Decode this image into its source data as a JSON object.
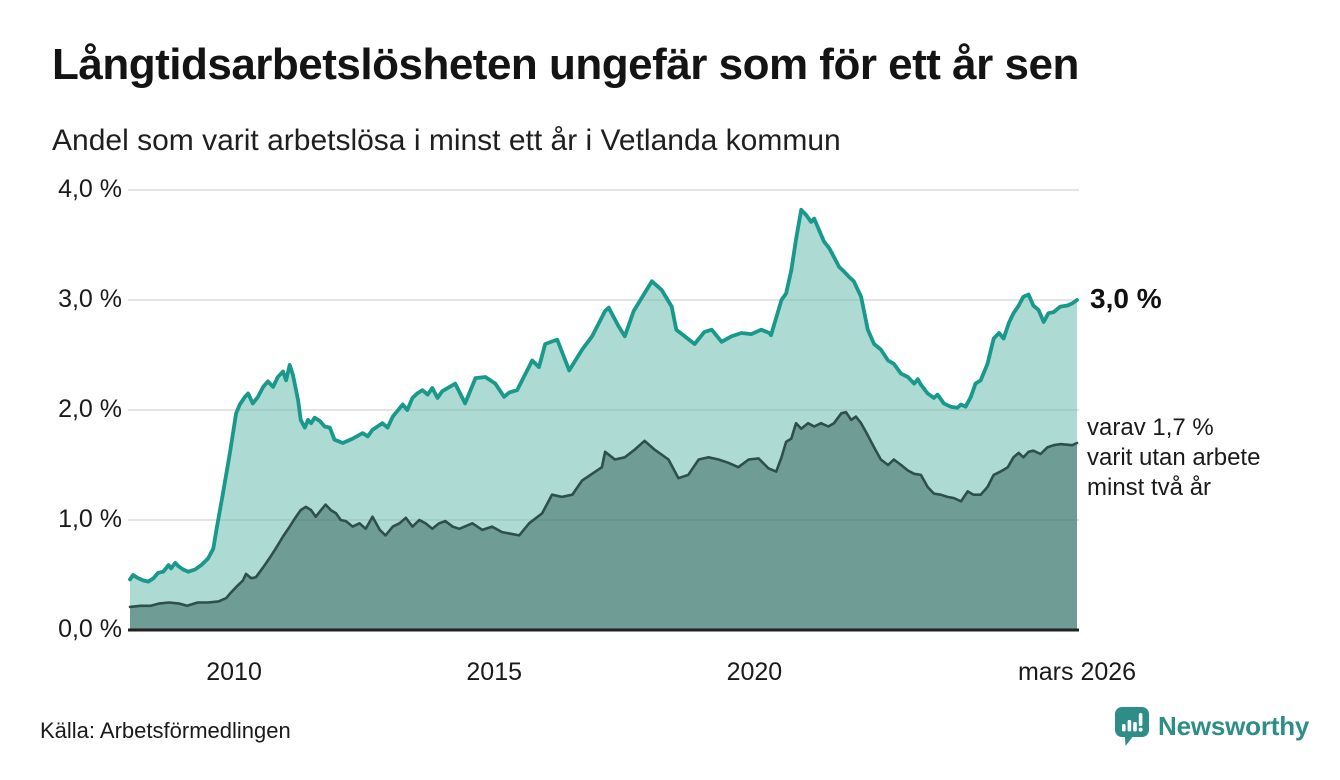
{
  "header": {
    "title": "Långtidsarbetslösheten ungefär som för ett år sen",
    "subtitle": "Andel som varit arbetslösa i minst ett år i Vetlanda kommun"
  },
  "footer": {
    "source": "Källa: Arbetsförmedlingen",
    "brand": "Newsworthy"
  },
  "chart_data": {
    "type": "area",
    "title": "Långtidsarbetslösheten ungefär som för ett år sen",
    "subtitle": "Andel som varit arbetslösa i minst ett år i Vetlanda kommun",
    "x_range": [
      2008.0,
      2026.2
    ],
    "y_range": [
      0,
      4.0
    ],
    "grid": "horizontal",
    "legend_position": "none",
    "y_ticks": [
      {
        "value": 4.0,
        "label": "4,0 %"
      },
      {
        "value": 3.0,
        "label": "3,0 %"
      },
      {
        "value": 2.0,
        "label": "2,0 %"
      },
      {
        "value": 1.0,
        "label": "1,0 %"
      },
      {
        "value": 0.0,
        "label": "0,0 %"
      }
    ],
    "x_ticks": [
      {
        "value": 2010,
        "label": "2010"
      },
      {
        "value": 2015,
        "label": "2015"
      },
      {
        "value": 2020,
        "label": "2020"
      },
      {
        "value": 2026.2,
        "label": "mars 2026"
      }
    ],
    "annotations": {
      "total_label": "3,0 %",
      "sub": [
        "varav 1,7 %",
        "varit utan arbete",
        "minst två år"
      ]
    },
    "colors": {
      "line_total": "#18998b",
      "fill_total": "#addad2",
      "line_two_years": "#2e4f4a",
      "fill_two_years": "#6f9d96",
      "grid": "#dcdcdc",
      "axis": "#222222",
      "brand": "#2e8e87"
    },
    "series": [
      {
        "name": "Andel arbetslösa minst ett år",
        "end_value": "3,0 %",
        "points": [
          [
            2008.0,
            0.46
          ],
          [
            2008.06,
            0.5
          ],
          [
            2008.16,
            0.47
          ],
          [
            2008.26,
            0.45
          ],
          [
            2008.35,
            0.44
          ],
          [
            2008.45,
            0.47
          ],
          [
            2008.54,
            0.52
          ],
          [
            2008.64,
            0.53
          ],
          [
            2008.74,
            0.59
          ],
          [
            2008.79,
            0.56
          ],
          [
            2008.87,
            0.61
          ],
          [
            2008.93,
            0.58
          ],
          [
            2009.02,
            0.55
          ],
          [
            2009.12,
            0.53
          ],
          [
            2009.25,
            0.55
          ],
          [
            2009.37,
            0.59
          ],
          [
            2009.5,
            0.65
          ],
          [
            2009.6,
            0.74
          ],
          [
            2009.66,
            0.91
          ],
          [
            2009.79,
            1.25
          ],
          [
            2009.92,
            1.61
          ],
          [
            2010.04,
            1.97
          ],
          [
            2010.11,
            2.05
          ],
          [
            2010.21,
            2.12
          ],
          [
            2010.27,
            2.15
          ],
          [
            2010.36,
            2.06
          ],
          [
            2010.46,
            2.12
          ],
          [
            2010.56,
            2.21
          ],
          [
            2010.65,
            2.26
          ],
          [
            2010.75,
            2.21
          ],
          [
            2010.84,
            2.3
          ],
          [
            2010.94,
            2.35
          ],
          [
            2011.0,
            2.27
          ],
          [
            2011.07,
            2.41
          ],
          [
            2011.13,
            2.32
          ],
          [
            2011.23,
            2.09
          ],
          [
            2011.28,
            1.91
          ],
          [
            2011.36,
            1.84
          ],
          [
            2011.42,
            1.91
          ],
          [
            2011.48,
            1.88
          ],
          [
            2011.55,
            1.93
          ],
          [
            2011.65,
            1.9
          ],
          [
            2011.74,
            1.85
          ],
          [
            2011.84,
            1.84
          ],
          [
            2011.93,
            1.73
          ],
          [
            2012.09,
            1.7
          ],
          [
            2012.28,
            1.74
          ],
          [
            2012.47,
            1.79
          ],
          [
            2012.57,
            1.76
          ],
          [
            2012.66,
            1.82
          ],
          [
            2012.85,
            1.88
          ],
          [
            2012.95,
            1.84
          ],
          [
            2013.05,
            1.94
          ],
          [
            2013.24,
            2.05
          ],
          [
            2013.33,
            2.0
          ],
          [
            2013.43,
            2.11
          ],
          [
            2013.52,
            2.15
          ],
          [
            2013.62,
            2.18
          ],
          [
            2013.72,
            2.14
          ],
          [
            2013.81,
            2.2
          ],
          [
            2013.91,
            2.11
          ],
          [
            2014.0,
            2.17
          ],
          [
            2014.25,
            2.24
          ],
          [
            2014.44,
            2.06
          ],
          [
            2014.64,
            2.29
          ],
          [
            2014.83,
            2.3
          ],
          [
            2015.02,
            2.24
          ],
          [
            2015.19,
            2.12
          ],
          [
            2015.29,
            2.16
          ],
          [
            2015.44,
            2.18
          ],
          [
            2015.73,
            2.45
          ],
          [
            2015.86,
            2.39
          ],
          [
            2015.98,
            2.6
          ],
          [
            2016.21,
            2.64
          ],
          [
            2016.44,
            2.36
          ],
          [
            2016.69,
            2.55
          ],
          [
            2016.88,
            2.67
          ],
          [
            2017.13,
            2.9
          ],
          [
            2017.2,
            2.93
          ],
          [
            2017.39,
            2.76
          ],
          [
            2017.51,
            2.67
          ],
          [
            2017.68,
            2.9
          ],
          [
            2018.03,
            3.17
          ],
          [
            2018.22,
            3.09
          ],
          [
            2018.41,
            2.94
          ],
          [
            2018.5,
            2.73
          ],
          [
            2018.66,
            2.67
          ],
          [
            2018.85,
            2.6
          ],
          [
            2019.04,
            2.71
          ],
          [
            2019.18,
            2.73
          ],
          [
            2019.37,
            2.62
          ],
          [
            2019.56,
            2.67
          ],
          [
            2019.75,
            2.7
          ],
          [
            2019.94,
            2.69
          ],
          [
            2020.13,
            2.73
          ],
          [
            2020.29,
            2.7
          ],
          [
            2020.32,
            2.68
          ],
          [
            2020.52,
            3.0
          ],
          [
            2020.61,
            3.06
          ],
          [
            2020.71,
            3.27
          ],
          [
            2020.8,
            3.55
          ],
          [
            2020.9,
            3.82
          ],
          [
            2021.0,
            3.77
          ],
          [
            2021.09,
            3.71
          ],
          [
            2021.15,
            3.74
          ],
          [
            2021.24,
            3.64
          ],
          [
            2021.34,
            3.53
          ],
          [
            2021.44,
            3.47
          ],
          [
            2021.53,
            3.39
          ],
          [
            2021.63,
            3.3
          ],
          [
            2021.72,
            3.26
          ],
          [
            2021.82,
            3.21
          ],
          [
            2021.91,
            3.17
          ],
          [
            2022.05,
            3.03
          ],
          [
            2022.18,
            2.73
          ],
          [
            2022.3,
            2.6
          ],
          [
            2022.43,
            2.55
          ],
          [
            2022.57,
            2.45
          ],
          [
            2022.68,
            2.42
          ],
          [
            2022.82,
            2.33
          ],
          [
            2022.95,
            2.3
          ],
          [
            2023.07,
            2.24
          ],
          [
            2023.14,
            2.28
          ],
          [
            2023.2,
            2.23
          ],
          [
            2023.33,
            2.15
          ],
          [
            2023.45,
            2.11
          ],
          [
            2023.52,
            2.14
          ],
          [
            2023.64,
            2.06
          ],
          [
            2023.77,
            2.03
          ],
          [
            2023.9,
            2.02
          ],
          [
            2023.97,
            2.05
          ],
          [
            2024.06,
            2.03
          ],
          [
            2024.16,
            2.12
          ],
          [
            2024.25,
            2.24
          ],
          [
            2024.35,
            2.27
          ],
          [
            2024.48,
            2.42
          ],
          [
            2024.6,
            2.65
          ],
          [
            2024.7,
            2.7
          ],
          [
            2024.79,
            2.65
          ],
          [
            2024.89,
            2.79
          ],
          [
            2024.98,
            2.88
          ],
          [
            2025.08,
            2.95
          ],
          [
            2025.17,
            3.03
          ],
          [
            2025.27,
            3.05
          ],
          [
            2025.36,
            2.95
          ],
          [
            2025.46,
            2.91
          ],
          [
            2025.56,
            2.8
          ],
          [
            2025.65,
            2.88
          ],
          [
            2025.75,
            2.89
          ],
          [
            2025.88,
            2.94
          ],
          [
            2026.02,
            2.95
          ],
          [
            2026.11,
            2.97
          ],
          [
            2026.2,
            3.0
          ]
        ]
      },
      {
        "name": "varav utan arbete minst två år",
        "end_value": "1,7 %",
        "points": [
          [
            2008.0,
            0.21
          ],
          [
            2008.2,
            0.22
          ],
          [
            2008.4,
            0.22
          ],
          [
            2008.55,
            0.24
          ],
          [
            2008.75,
            0.25
          ],
          [
            2008.95,
            0.24
          ],
          [
            2009.1,
            0.22
          ],
          [
            2009.3,
            0.25
          ],
          [
            2009.5,
            0.25
          ],
          [
            2009.7,
            0.26
          ],
          [
            2009.85,
            0.29
          ],
          [
            2009.92,
            0.33
          ],
          [
            2010.04,
            0.39
          ],
          [
            2010.17,
            0.45
          ],
          [
            2010.23,
            0.51
          ],
          [
            2010.33,
            0.47
          ],
          [
            2010.42,
            0.48
          ],
          [
            2010.56,
            0.57
          ],
          [
            2010.69,
            0.66
          ],
          [
            2010.8,
            0.74
          ],
          [
            2010.94,
            0.85
          ],
          [
            2011.07,
            0.94
          ],
          [
            2011.19,
            1.03
          ],
          [
            2011.28,
            1.09
          ],
          [
            2011.38,
            1.12
          ],
          [
            2011.48,
            1.09
          ],
          [
            2011.57,
            1.03
          ],
          [
            2011.67,
            1.09
          ],
          [
            2011.76,
            1.14
          ],
          [
            2011.86,
            1.09
          ],
          [
            2011.96,
            1.06
          ],
          [
            2012.05,
            1.0
          ],
          [
            2012.15,
            0.99
          ],
          [
            2012.28,
            0.94
          ],
          [
            2012.41,
            0.97
          ],
          [
            2012.53,
            0.92
          ],
          [
            2012.66,
            1.03
          ],
          [
            2012.8,
            0.91
          ],
          [
            2012.91,
            0.86
          ],
          [
            2013.05,
            0.94
          ],
          [
            2013.18,
            0.97
          ],
          [
            2013.3,
            1.02
          ],
          [
            2013.43,
            0.94
          ],
          [
            2013.56,
            1.0
          ],
          [
            2013.68,
            0.97
          ],
          [
            2013.81,
            0.92
          ],
          [
            2013.94,
            0.97
          ],
          [
            2014.06,
            0.99
          ],
          [
            2014.2,
            0.94
          ],
          [
            2014.33,
            0.92
          ],
          [
            2014.58,
            0.97
          ],
          [
            2014.77,
            0.91
          ],
          [
            2014.96,
            0.94
          ],
          [
            2015.15,
            0.89
          ],
          [
            2015.48,
            0.86
          ],
          [
            2015.67,
            0.97
          ],
          [
            2015.92,
            1.06
          ],
          [
            2016.11,
            1.23
          ],
          [
            2016.3,
            1.21
          ],
          [
            2016.5,
            1.23
          ],
          [
            2016.69,
            1.36
          ],
          [
            2016.88,
            1.42
          ],
          [
            2017.07,
            1.48
          ],
          [
            2017.13,
            1.62
          ],
          [
            2017.32,
            1.55
          ],
          [
            2017.51,
            1.57
          ],
          [
            2017.7,
            1.64
          ],
          [
            2017.89,
            1.72
          ],
          [
            2018.08,
            1.64
          ],
          [
            2018.35,
            1.55
          ],
          [
            2018.54,
            1.38
          ],
          [
            2018.73,
            1.41
          ],
          [
            2018.93,
            1.55
          ],
          [
            2019.12,
            1.57
          ],
          [
            2019.31,
            1.55
          ],
          [
            2019.5,
            1.52
          ],
          [
            2019.69,
            1.48
          ],
          [
            2019.89,
            1.55
          ],
          [
            2020.08,
            1.56
          ],
          [
            2020.27,
            1.47
          ],
          [
            2020.42,
            1.44
          ],
          [
            2020.52,
            1.57
          ],
          [
            2020.61,
            1.71
          ],
          [
            2020.71,
            1.74
          ],
          [
            2020.8,
            1.88
          ],
          [
            2020.9,
            1.83
          ],
          [
            2021.03,
            1.88
          ],
          [
            2021.15,
            1.85
          ],
          [
            2021.28,
            1.88
          ],
          [
            2021.42,
            1.85
          ],
          [
            2021.53,
            1.88
          ],
          [
            2021.67,
            1.97
          ],
          [
            2021.76,
            1.98
          ],
          [
            2021.86,
            1.91
          ],
          [
            2021.95,
            1.94
          ],
          [
            2022.05,
            1.88
          ],
          [
            2022.18,
            1.77
          ],
          [
            2022.3,
            1.66
          ],
          [
            2022.43,
            1.55
          ],
          [
            2022.57,
            1.5
          ],
          [
            2022.68,
            1.55
          ],
          [
            2022.82,
            1.5
          ],
          [
            2022.95,
            1.45
          ],
          [
            2023.07,
            1.42
          ],
          [
            2023.2,
            1.41
          ],
          [
            2023.33,
            1.3
          ],
          [
            2023.45,
            1.24
          ],
          [
            2023.58,
            1.23
          ],
          [
            2023.71,
            1.21
          ],
          [
            2023.83,
            1.2
          ],
          [
            2023.97,
            1.17
          ],
          [
            2024.1,
            1.26
          ],
          [
            2024.21,
            1.23
          ],
          [
            2024.35,
            1.23
          ],
          [
            2024.48,
            1.3
          ],
          [
            2024.6,
            1.41
          ],
          [
            2024.73,
            1.44
          ],
          [
            2024.87,
            1.48
          ],
          [
            2024.98,
            1.57
          ],
          [
            2025.08,
            1.61
          ],
          [
            2025.17,
            1.57
          ],
          [
            2025.27,
            1.62
          ],
          [
            2025.36,
            1.63
          ],
          [
            2025.5,
            1.6
          ],
          [
            2025.63,
            1.66
          ],
          [
            2025.75,
            1.68
          ],
          [
            2025.88,
            1.69
          ],
          [
            2026.11,
            1.68
          ],
          [
            2026.2,
            1.7
          ]
        ]
      }
    ]
  }
}
